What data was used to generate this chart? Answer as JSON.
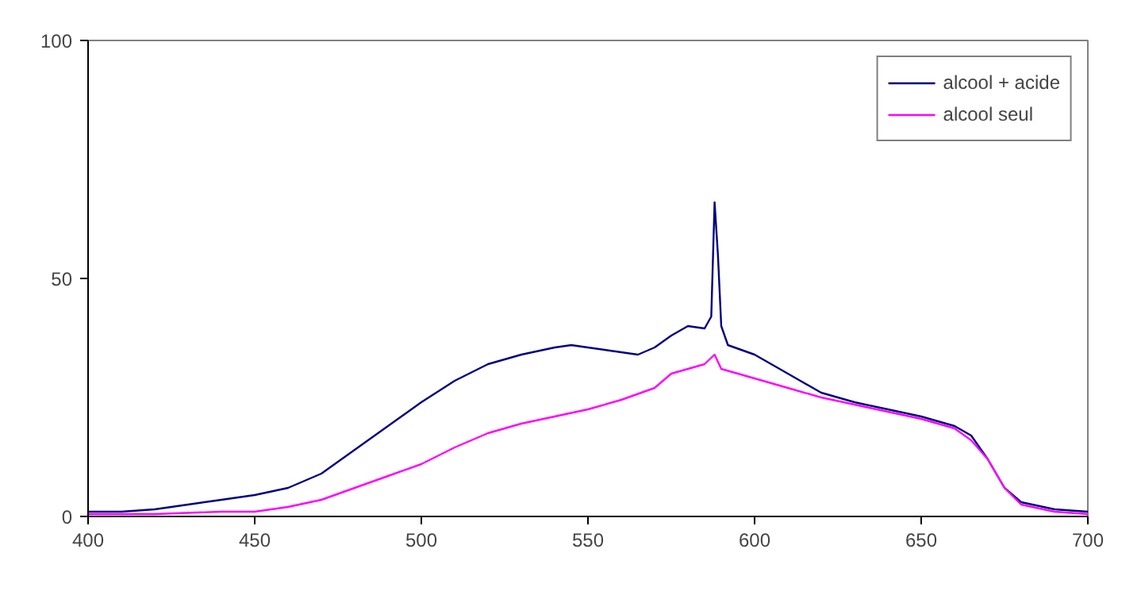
{
  "chart_data": {
    "type": "line",
    "xlim": [
      400,
      700
    ],
    "ylim": [
      0,
      100
    ],
    "xticks": [
      400,
      450,
      500,
      550,
      600,
      650,
      700
    ],
    "yticks": [
      0,
      50,
      100
    ],
    "grid": false,
    "legend": "top right",
    "marker": "none",
    "line_style": "solid",
    "series": [
      {
        "name": "alcool + acide",
        "color": "#000080",
        "x": [
          400,
          410,
          420,
          430,
          440,
          450,
          460,
          470,
          480,
          490,
          500,
          510,
          520,
          530,
          540,
          545,
          550,
          560,
          565,
          570,
          575,
          580,
          585,
          587,
          588,
          589,
          590,
          592,
          600,
          610,
          620,
          630,
          640,
          650,
          660,
          665,
          670,
          675,
          680,
          690,
          700
        ],
        "values": [
          1,
          1,
          1.5,
          2.5,
          3.5,
          4.5,
          6,
          9,
          14,
          19,
          24,
          28.5,
          32,
          34,
          35.5,
          36,
          35.5,
          34.5,
          34,
          35.5,
          38,
          40,
          39.5,
          42,
          66,
          55,
          40,
          36,
          34,
          30,
          26,
          24,
          22.5,
          21,
          19,
          17,
          12,
          6,
          3,
          1.5,
          1
        ]
      },
      {
        "name": "alcool seul",
        "color": "#ff00ff",
        "x": [
          400,
          420,
          440,
          450,
          460,
          470,
          480,
          490,
          500,
          510,
          520,
          530,
          540,
          550,
          560,
          570,
          575,
          580,
          585,
          588,
          590,
          595,
          600,
          610,
          620,
          630,
          640,
          650,
          660,
          665,
          670,
          675,
          680,
          690,
          700
        ],
        "values": [
          0.5,
          0.5,
          1,
          1,
          2,
          3.5,
          6,
          8.5,
          11,
          14.5,
          17.5,
          19.5,
          21,
          22.5,
          24.5,
          27,
          30,
          31,
          32,
          34,
          31,
          30,
          29,
          27,
          25,
          23.5,
          22,
          20.5,
          18.5,
          16,
          12,
          6,
          2.5,
          1,
          0.5
        ]
      }
    ]
  }
}
